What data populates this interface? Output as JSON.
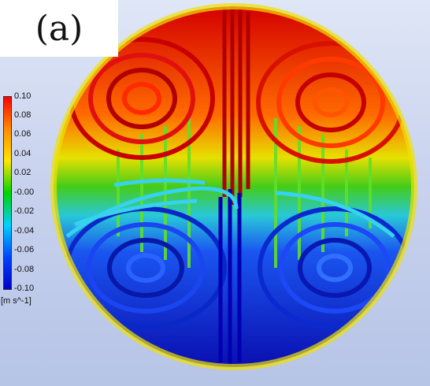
{
  "panel_label": "(a)",
  "legend": {
    "ticks": [
      "0.10",
      "0.08",
      "0.06",
      "0.04",
      "0.02",
      "-0.00",
      "-0.02",
      "-0.04",
      "-0.06",
      "-0.08",
      "-0.10"
    ],
    "unit": "[m s^-1]",
    "colors": [
      "#ff0000",
      "#ff8a00",
      "#ffe600",
      "#00d400",
      "#00d2ff",
      "#0044ff",
      "#0000c8"
    ]
  },
  "scene": {
    "description_colors": {
      "upper_vortices": "#d80000",
      "lower_vortices": "#0a2fd0",
      "middle_band": "#3ccf1a",
      "cyan_edge": "#38d6f0",
      "yellow_edge": "#e8e000"
    }
  }
}
